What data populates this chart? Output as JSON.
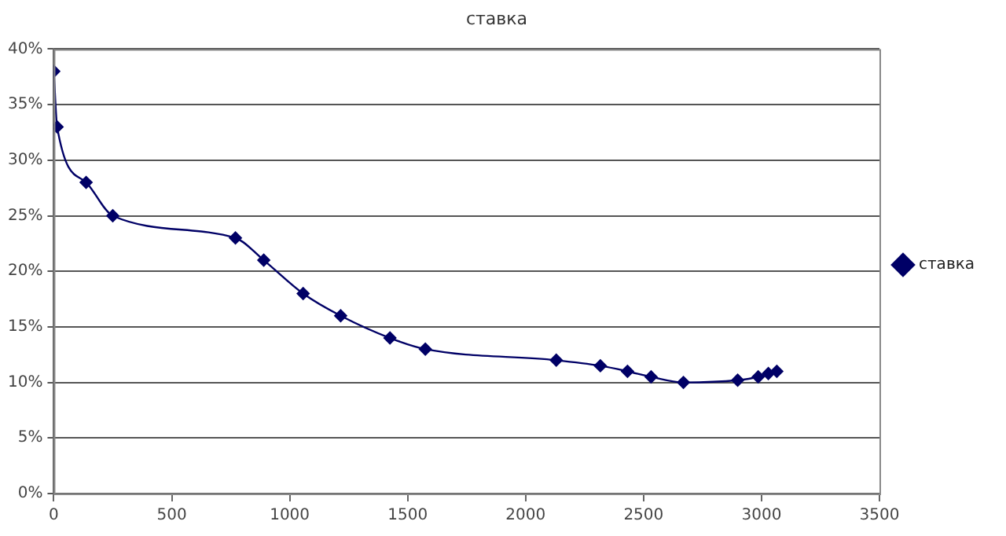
{
  "chart_data": {
    "type": "line",
    "title": "ставка",
    "x": [
      0,
      14,
      137,
      250,
      770,
      890,
      1057,
      1216,
      1425,
      1575,
      2130,
      2317,
      2432,
      2532,
      2669,
      2899,
      2986,
      3029,
      3065
    ],
    "series": [
      {
        "name": "ставка",
        "color": "#000066",
        "values": [
          38,
          33,
          28,
          25,
          23,
          21,
          18,
          16,
          14,
          13,
          12,
          11.5,
          11,
          10.5,
          10,
          10.2,
          10.5,
          10.8,
          11
        ]
      }
    ],
    "xlim": [
      0,
      3500
    ],
    "xticks": [
      0,
      500,
      1000,
      1500,
      2000,
      2500,
      3000,
      3500
    ],
    "ylim": [
      0,
      40
    ],
    "yticks": [
      {
        "value": 0,
        "label": "0%"
      },
      {
        "value": 5,
        "label": "5%"
      },
      {
        "value": 10,
        "label": "10%"
      },
      {
        "value": 15,
        "label": "15%"
      },
      {
        "value": 20,
        "label": "20%"
      },
      {
        "value": 25,
        "label": "25%"
      },
      {
        "value": 30,
        "label": "30%"
      },
      {
        "value": 35,
        "label": "35%"
      },
      {
        "value": 40,
        "label": "40%"
      }
    ],
    "grid": "y",
    "legend": "right",
    "marker": "diamond",
    "line_style": "solid"
  }
}
